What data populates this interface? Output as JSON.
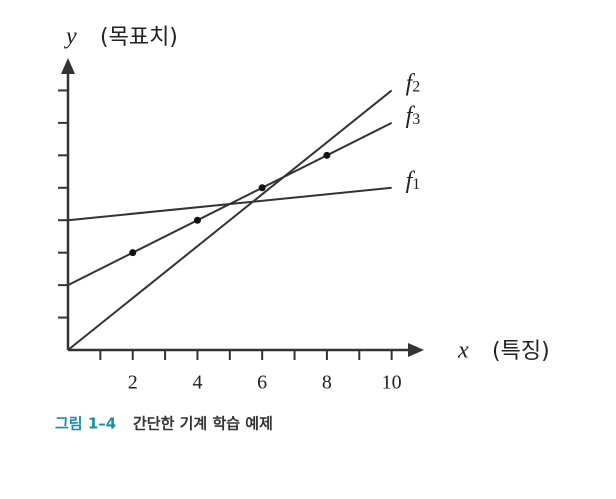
{
  "chart_data": {
    "type": "line",
    "y_label": "y",
    "y_unit": "(목표치)",
    "x_label": "x",
    "x_unit": "(특징)",
    "caption_number": "그림 1–4",
    "caption": "간단한 기계 학습 예제",
    "xlim": [
      0,
      11
    ],
    "ylim": [
      0,
      9
    ],
    "xticks": [
      2,
      4,
      6,
      8,
      10
    ],
    "xminorticks": [
      1,
      3,
      5,
      7,
      9
    ],
    "yticks": [
      1,
      2,
      3,
      4,
      5,
      6,
      7,
      8
    ],
    "color": "#333333",
    "series": [
      {
        "name": "f2",
        "x": [
          0,
          10
        ],
        "values": [
          0,
          8
        ]
      },
      {
        "name": "f3",
        "x": [
          0,
          10
        ],
        "values": [
          2,
          7
        ]
      },
      {
        "name": "f1",
        "x": [
          0,
          10
        ],
        "values": [
          4,
          5
        ]
      }
    ],
    "points": {
      "x": [
        2,
        4,
        6,
        8
      ],
      "values": [
        3,
        4,
        5,
        6
      ]
    }
  }
}
